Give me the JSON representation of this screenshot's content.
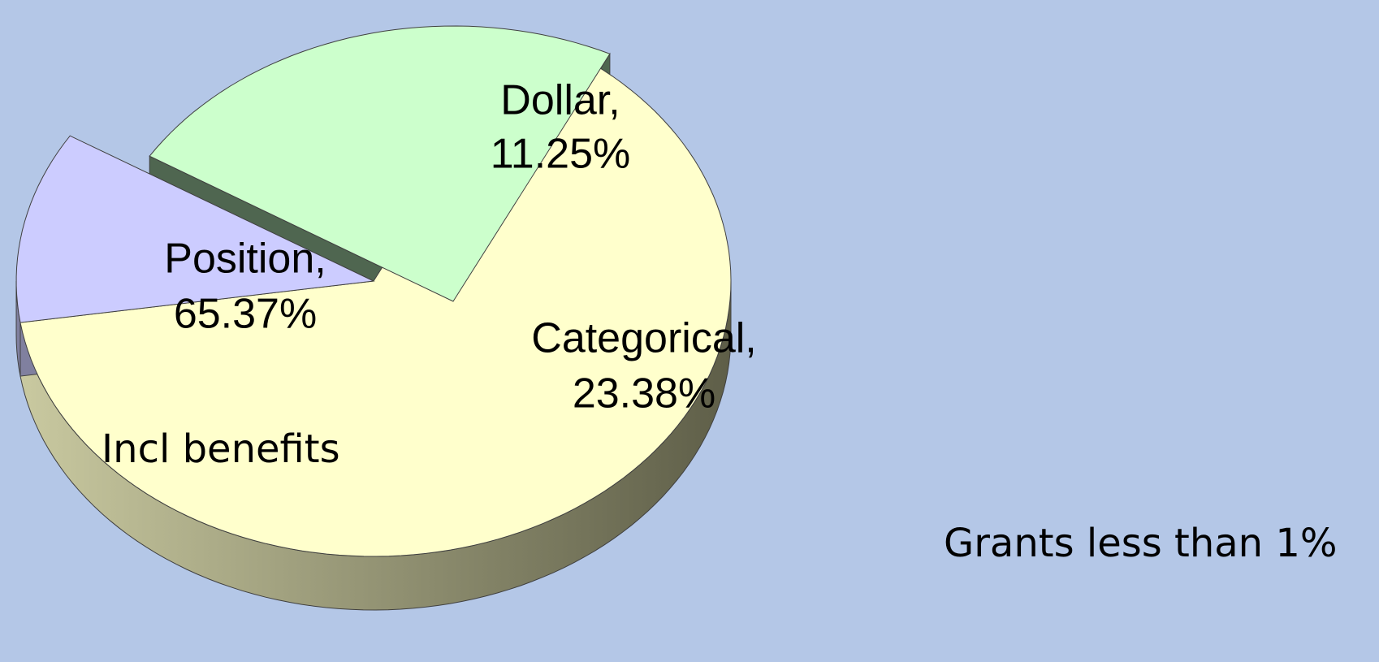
{
  "chart_data": {
    "type": "pie3d",
    "categories": [
      "Position,",
      "Dollar,",
      "Categorical,"
    ],
    "values": [
      65.37,
      11.25,
      23.38
    ],
    "value_labels": [
      "65.37%",
      "11.25%",
      "23.38%"
    ],
    "colors": [
      "#ffffcc",
      "#ccccff",
      "#ccffcc"
    ],
    "annotations": [
      "Incl benefits",
      "Grants less than 1%"
    ]
  }
}
